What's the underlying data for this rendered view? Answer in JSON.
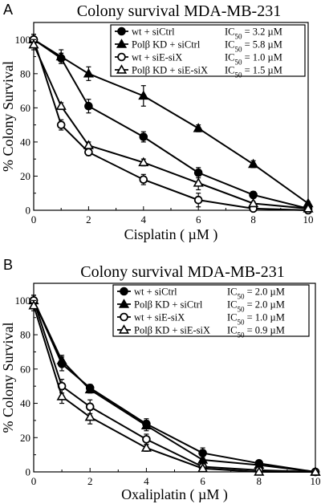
{
  "chart_data": [
    {
      "panel_label": "A",
      "type": "line",
      "title": "Colony survival MDA-MB-231",
      "xlabel": "Cisplatin ( µM )",
      "ylabel": "% Colony Survival",
      "xlim": [
        0,
        10
      ],
      "ylim": [
        0,
        110
      ],
      "xticks": [
        0,
        2,
        4,
        6,
        8,
        10
      ],
      "yticks": [
        0,
        20,
        40,
        60,
        80,
        100
      ],
      "grid": false,
      "legend_position": "top-right",
      "series": [
        {
          "name": "wt + siCtrl",
          "ic50": "IC50 = 3.2 µM",
          "marker": "circle-filled",
          "x": [
            0,
            1,
            2,
            4,
            6,
            8,
            10
          ],
          "y": [
            100,
            89,
            61,
            43,
            22,
            9,
            1
          ],
          "err": [
            3,
            3,
            4,
            3,
            3,
            2,
            1
          ]
        },
        {
          "name": "Polβ KD + siCtrl",
          "ic50": "IC50 = 5.8 µM",
          "marker": "triangle-filled",
          "x": [
            0,
            1,
            2,
            4,
            6,
            8,
            10
          ],
          "y": [
            100,
            90,
            80,
            67,
            48,
            27,
            4
          ],
          "err": [
            3,
            4,
            4,
            6,
            2,
            2,
            1
          ]
        },
        {
          "name": "wt + siE-siX",
          "ic50": "IC50 = 1.0 µM",
          "marker": "circle-open",
          "x": [
            0,
            1,
            2,
            4,
            6,
            8,
            10
          ],
          "y": [
            100,
            50,
            34,
            18,
            6,
            1,
            0
          ],
          "err": [
            3,
            3,
            2,
            3,
            4,
            1,
            1
          ]
        },
        {
          "name": "Polβ KD + siE-siX",
          "ic50": "IC50 = 1.5 µM",
          "marker": "triangle-open",
          "x": [
            0,
            1,
            2,
            4,
            6,
            8,
            10
          ],
          "y": [
            97,
            61,
            38,
            28,
            16,
            4,
            1
          ],
          "err": [
            3,
            2,
            2,
            2,
            4,
            1,
            1
          ]
        }
      ]
    },
    {
      "panel_label": "B",
      "type": "line",
      "title": "Colony survival MDA-MB-231",
      "xlabel": "Oxaliplatin ( µM )",
      "ylabel": "% Colony Survival",
      "xlim": [
        0,
        10
      ],
      "ylim": [
        0,
        110
      ],
      "xticks": [
        0,
        2,
        4,
        6,
        8,
        10
      ],
      "yticks": [
        0,
        20,
        40,
        60,
        80,
        100
      ],
      "grid": false,
      "legend_position": "top-right",
      "series": [
        {
          "name": "wt + siCtrl",
          "ic50": "IC50 = 2.0 µM",
          "marker": "circle-filled",
          "x": [
            0,
            1,
            2,
            4,
            6,
            8,
            10
          ],
          "y": [
            100,
            63,
            49,
            28,
            11,
            5,
            0
          ],
          "err": [
            3,
            4,
            2,
            3,
            3,
            1,
            0
          ]
        },
        {
          "name": "Polβ KD + siCtrl",
          "ic50": "IC50 = 2.0 µM",
          "marker": "triangle-filled",
          "x": [
            0,
            1,
            2,
            4,
            6,
            8,
            10
          ],
          "y": [
            100,
            65,
            48,
            27,
            7,
            4,
            0
          ],
          "err": [
            3,
            3,
            2,
            3,
            2,
            1,
            0
          ]
        },
        {
          "name": "wt + siE-siX",
          "ic50": "IC50 = 1.0 µM",
          "marker": "circle-open",
          "x": [
            0,
            1,
            2,
            4,
            6,
            8,
            10
          ],
          "y": [
            100,
            50,
            38,
            19,
            3,
            1,
            0
          ],
          "err": [
            3,
            4,
            4,
            3,
            1,
            1,
            0
          ]
        },
        {
          "name": "Polβ KD + siE-siX",
          "ic50": "IC50 = 0.9 µM",
          "marker": "triangle-open",
          "x": [
            0,
            1,
            2,
            4,
            6,
            8,
            10
          ],
          "y": [
            97,
            44,
            32,
            14,
            2,
            0,
            0
          ],
          "err": [
            3,
            4,
            4,
            2,
            1,
            0,
            0
          ]
        }
      ]
    }
  ]
}
